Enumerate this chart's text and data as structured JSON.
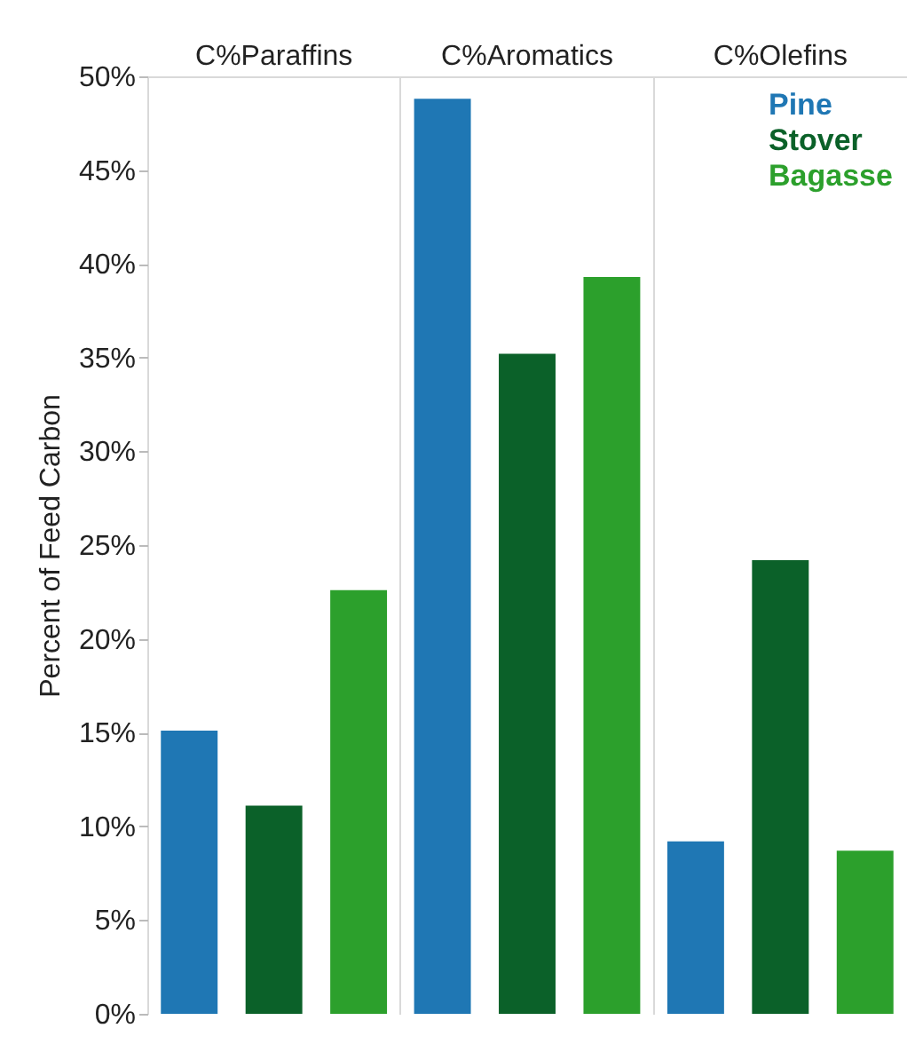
{
  "chart_data": {
    "type": "bar",
    "ylabel": "Percent of Feed Carbon",
    "categories": [
      "C%Paraffins",
      "C%Aromatics",
      "C%Olefins"
    ],
    "series": [
      {
        "name": "Pine",
        "color": "#1f77b4",
        "values": [
          15.1,
          48.8,
          9.2
        ]
      },
      {
        "name": "Stover",
        "color": "#0b6129",
        "values": [
          11.1,
          35.2,
          24.2
        ]
      },
      {
        "name": "Bagasse",
        "color": "#2ca02c",
        "values": [
          22.6,
          39.3,
          8.7
        ]
      }
    ],
    "ylim": [
      0,
      50
    ],
    "yticks": [
      {
        "value": 0,
        "label": "0%"
      },
      {
        "value": 5,
        "label": "5%"
      },
      {
        "value": 10,
        "label": "10%"
      },
      {
        "value": 15,
        "label": "15%"
      },
      {
        "value": 20,
        "label": "20%"
      },
      {
        "value": 25,
        "label": "25%"
      },
      {
        "value": 30,
        "label": "30%"
      },
      {
        "value": 35,
        "label": "35%"
      },
      {
        "value": 40,
        "label": "40%"
      },
      {
        "value": 45,
        "label": "45%"
      },
      {
        "value": 50,
        "label": "50%"
      }
    ],
    "grid": "x",
    "legend": "top right"
  }
}
